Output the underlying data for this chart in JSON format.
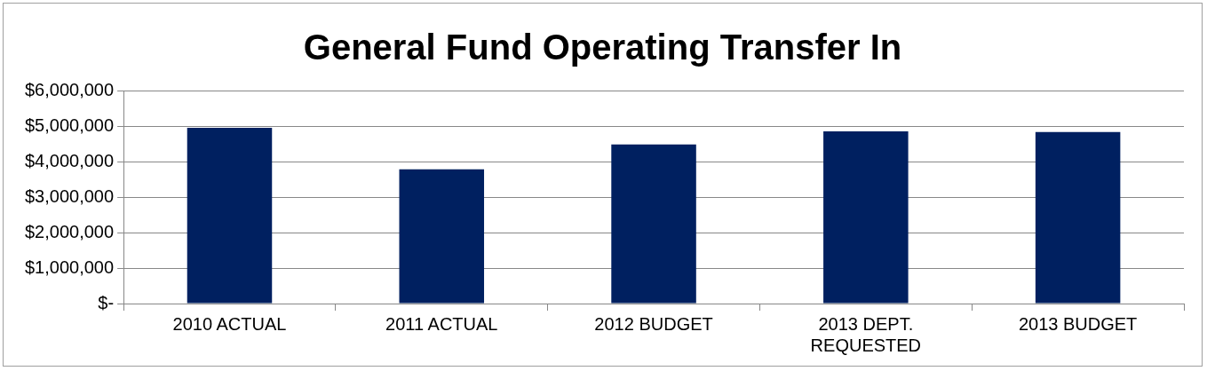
{
  "chart_data": {
    "type": "bar",
    "title": "General Fund Operating Transfer In",
    "categories": [
      "2010 ACTUAL",
      "2011 ACTUAL",
      "2012 BUDGET",
      "2013 DEPT. REQUESTED",
      "2013 BUDGET"
    ],
    "values": [
      4950000,
      3780000,
      4480000,
      4850000,
      4830000
    ],
    "color": "#002060",
    "ylim": [
      0,
      6000000
    ],
    "yticks": [
      {
        "value": 0,
        "label": "$-"
      },
      {
        "value": 1000000,
        "label": "$1,000,000"
      },
      {
        "value": 2000000,
        "label": "$2,000,000"
      },
      {
        "value": 3000000,
        "label": "$3,000,000"
      },
      {
        "value": 4000000,
        "label": "$4,000,000"
      },
      {
        "value": 5000000,
        "label": "$5,000,000"
      },
      {
        "value": 6000000,
        "label": "$6,000,000"
      }
    ],
    "grid": "y",
    "legend": false
  }
}
